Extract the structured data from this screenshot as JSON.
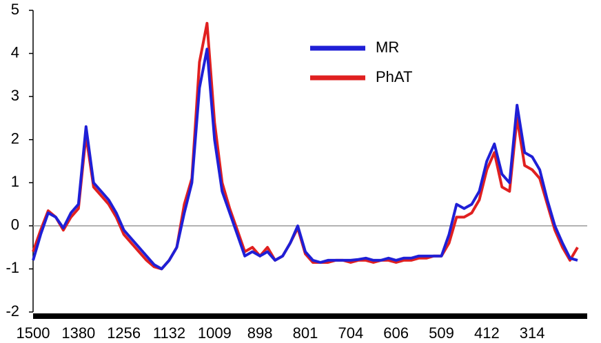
{
  "chart_data": {
    "type": "line",
    "categories": [
      "1500",
      null,
      null,
      null,
      null,
      null,
      "1380",
      null,
      null,
      null,
      null,
      null,
      "1256",
      null,
      null,
      null,
      null,
      null,
      "1132",
      null,
      null,
      null,
      null,
      null,
      "1009",
      null,
      null,
      null,
      null,
      null,
      "898",
      null,
      null,
      null,
      null,
      null,
      "801",
      null,
      null,
      null,
      null,
      null,
      "704",
      null,
      null,
      null,
      null,
      null,
      "606",
      null,
      null,
      null,
      null,
      null,
      "509",
      null,
      null,
      null,
      null,
      null,
      "412",
      null,
      null,
      null,
      null,
      null,
      "314",
      null,
      null,
      null,
      null,
      null,
      null
    ],
    "series": [
      {
        "name": "MR",
        "color": "#1f1fd6",
        "values": [
          -0.8,
          -0.2,
          0.3,
          0.2,
          -0.05,
          0.3,
          0.5,
          2.3,
          1.0,
          0.8,
          0.6,
          0.3,
          -0.1,
          -0.3,
          -0.5,
          -0.7,
          -0.9,
          -1.0,
          -0.8,
          -0.5,
          0.3,
          1.0,
          3.2,
          4.1,
          2.0,
          0.8,
          0.3,
          -0.2,
          -0.7,
          -0.6,
          -0.7,
          -0.6,
          -0.8,
          -0.7,
          -0.4,
          0.0,
          -0.6,
          -0.8,
          -0.85,
          -0.8,
          -0.8,
          -0.8,
          -0.8,
          -0.78,
          -0.75,
          -0.8,
          -0.8,
          -0.75,
          -0.8,
          -0.75,
          -0.75,
          -0.7,
          -0.7,
          -0.7,
          -0.7,
          -0.2,
          0.5,
          0.4,
          0.5,
          0.8,
          1.5,
          1.9,
          1.2,
          1.0,
          2.8,
          1.7,
          1.6,
          1.3,
          0.6,
          0.0,
          -0.4,
          -0.75,
          -0.8
        ]
      },
      {
        "name": "PhAT",
        "color": "#e02020",
        "values": [
          -0.6,
          -0.1,
          0.35,
          0.2,
          -0.1,
          0.2,
          0.4,
          2.1,
          0.9,
          0.7,
          0.5,
          0.2,
          -0.2,
          -0.4,
          -0.6,
          -0.8,
          -0.95,
          -1.0,
          -0.8,
          -0.5,
          0.5,
          1.1,
          3.8,
          4.7,
          2.4,
          1.0,
          0.4,
          -0.1,
          -0.6,
          -0.5,
          -0.7,
          -0.5,
          -0.8,
          -0.7,
          -0.4,
          -0.05,
          -0.65,
          -0.85,
          -0.85,
          -0.85,
          -0.8,
          -0.8,
          -0.85,
          -0.8,
          -0.8,
          -0.85,
          -0.8,
          -0.8,
          -0.85,
          -0.8,
          -0.8,
          -0.75,
          -0.75,
          -0.7,
          -0.7,
          -0.4,
          0.2,
          0.2,
          0.3,
          0.6,
          1.3,
          1.7,
          0.9,
          0.8,
          2.5,
          1.4,
          1.3,
          1.1,
          0.5,
          -0.1,
          -0.5,
          -0.8,
          -0.5
        ]
      }
    ],
    "ylim": [
      -2,
      5
    ],
    "yticks": [
      -2,
      -1,
      0,
      1,
      2,
      3,
      4,
      5
    ],
    "zero_line": true
  }
}
